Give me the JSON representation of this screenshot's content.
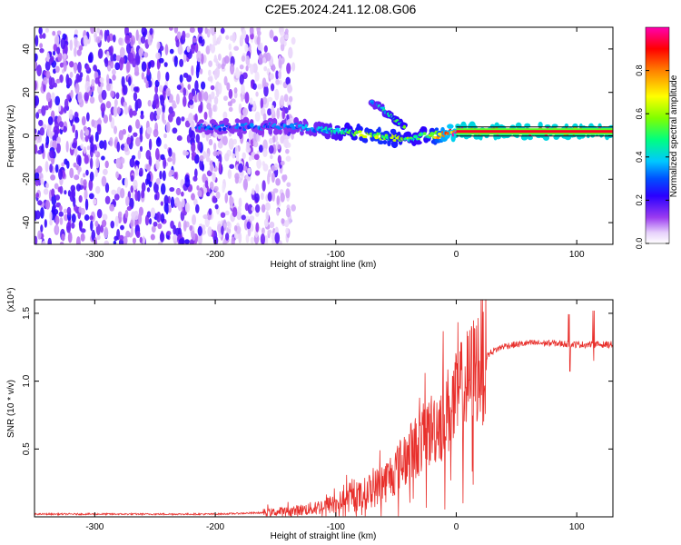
{
  "title": "C2E5.2024.241.12.08.G06",
  "chart_data": [
    {
      "type": "heatmap",
      "title": "C2E5.2024.241.12.08.G06",
      "xlabel": "Height of straight line (km)",
      "ylabel": "Frequency (Hz)",
      "xlim": [
        -350,
        130
      ],
      "ylim": [
        -50,
        50
      ],
      "xticks": [
        -300,
        -200,
        -100,
        0,
        100
      ],
      "yticks": [
        -40,
        -20,
        0,
        20,
        40
      ],
      "colorbar": {
        "label": "Normalized spectral amplitude",
        "range": [
          0,
          1
        ],
        "ticks": [
          "0.0",
          "0.2",
          "0.4",
          "0.6",
          "0.8"
        ],
        "tick_values": [
          0.0,
          0.2,
          0.4,
          0.6,
          0.8
        ],
        "colormap": [
          "#ffffff",
          "#d8b8f8",
          "#8a2be2",
          "#3a00ff",
          "#0000ff",
          "#00c8ff",
          "#00ff7f",
          "#7fff00",
          "#ffff00",
          "#ff8000",
          "#ff0000",
          "#ff00ff"
        ]
      },
      "features": {
        "noise_region_x": [
          -350,
          -135
        ],
        "main_trace": [
          {
            "x": -215,
            "y": 4,
            "amp": 0.3
          },
          {
            "x": -190,
            "y": 4,
            "amp": 0.3
          },
          {
            "x": -165,
            "y": 4,
            "amp": 0.3
          },
          {
            "x": -140,
            "y": 5,
            "amp": 0.3
          },
          {
            "x": -115,
            "y": 3,
            "amp": 0.35
          },
          {
            "x": -95,
            "y": 2,
            "amp": 0.45
          },
          {
            "x": -80,
            "y": 1,
            "amp": 0.55
          },
          {
            "x": -65,
            "y": 0,
            "amp": 0.6
          },
          {
            "x": -50,
            "y": -1,
            "amp": 0.55
          },
          {
            "x": -40,
            "y": -2,
            "amp": 0.5
          },
          {
            "x": -30,
            "y": 0,
            "amp": 0.45
          },
          {
            "x": -20,
            "y": 0,
            "amp": 0.55
          },
          {
            "x": -10,
            "y": 1,
            "amp": 0.8
          },
          {
            "x": 0,
            "y": 2,
            "amp": 0.9
          },
          {
            "x": 130,
            "y": 2,
            "amp": 0.9
          }
        ],
        "branch_trace": [
          {
            "x": -70,
            "y": 16,
            "amp": 0.35
          },
          {
            "x": -60,
            "y": 12,
            "amp": 0.4
          },
          {
            "x": -50,
            "y": 7,
            "amp": 0.5
          },
          {
            "x": -42,
            "y": 3,
            "amp": 0.5
          }
        ]
      }
    },
    {
      "type": "line",
      "xlabel": "Height of straight line (km)",
      "ylabel": "SNR (10 * v/v)",
      "yscale_label": "(x10⁴)",
      "xlim": [
        -350,
        130
      ],
      "ylim": [
        0,
        1.6
      ],
      "xticks": [
        -300,
        -200,
        -100,
        0,
        100
      ],
      "yticks": [
        0.5,
        1.0,
        1.5
      ],
      "color": "#e8302c",
      "series": [
        {
          "x": [
            -350,
            -300,
            -250,
            -200,
            -160,
            -140,
            -120,
            -100,
            -80,
            -60,
            -50,
            -40,
            -30,
            -20,
            -10,
            0,
            10,
            20,
            30,
            40,
            60,
            80,
            100,
            115,
            130
          ],
          "values": [
            0.02,
            0.02,
            0.02,
            0.02,
            0.03,
            0.04,
            0.06,
            0.1,
            0.15,
            0.25,
            0.35,
            0.45,
            0.55,
            0.65,
            0.75,
            0.85,
            1.0,
            1.15,
            1.22,
            1.26,
            1.28,
            1.28,
            1.27,
            1.27,
            1.27
          ]
        }
      ]
    }
  ]
}
